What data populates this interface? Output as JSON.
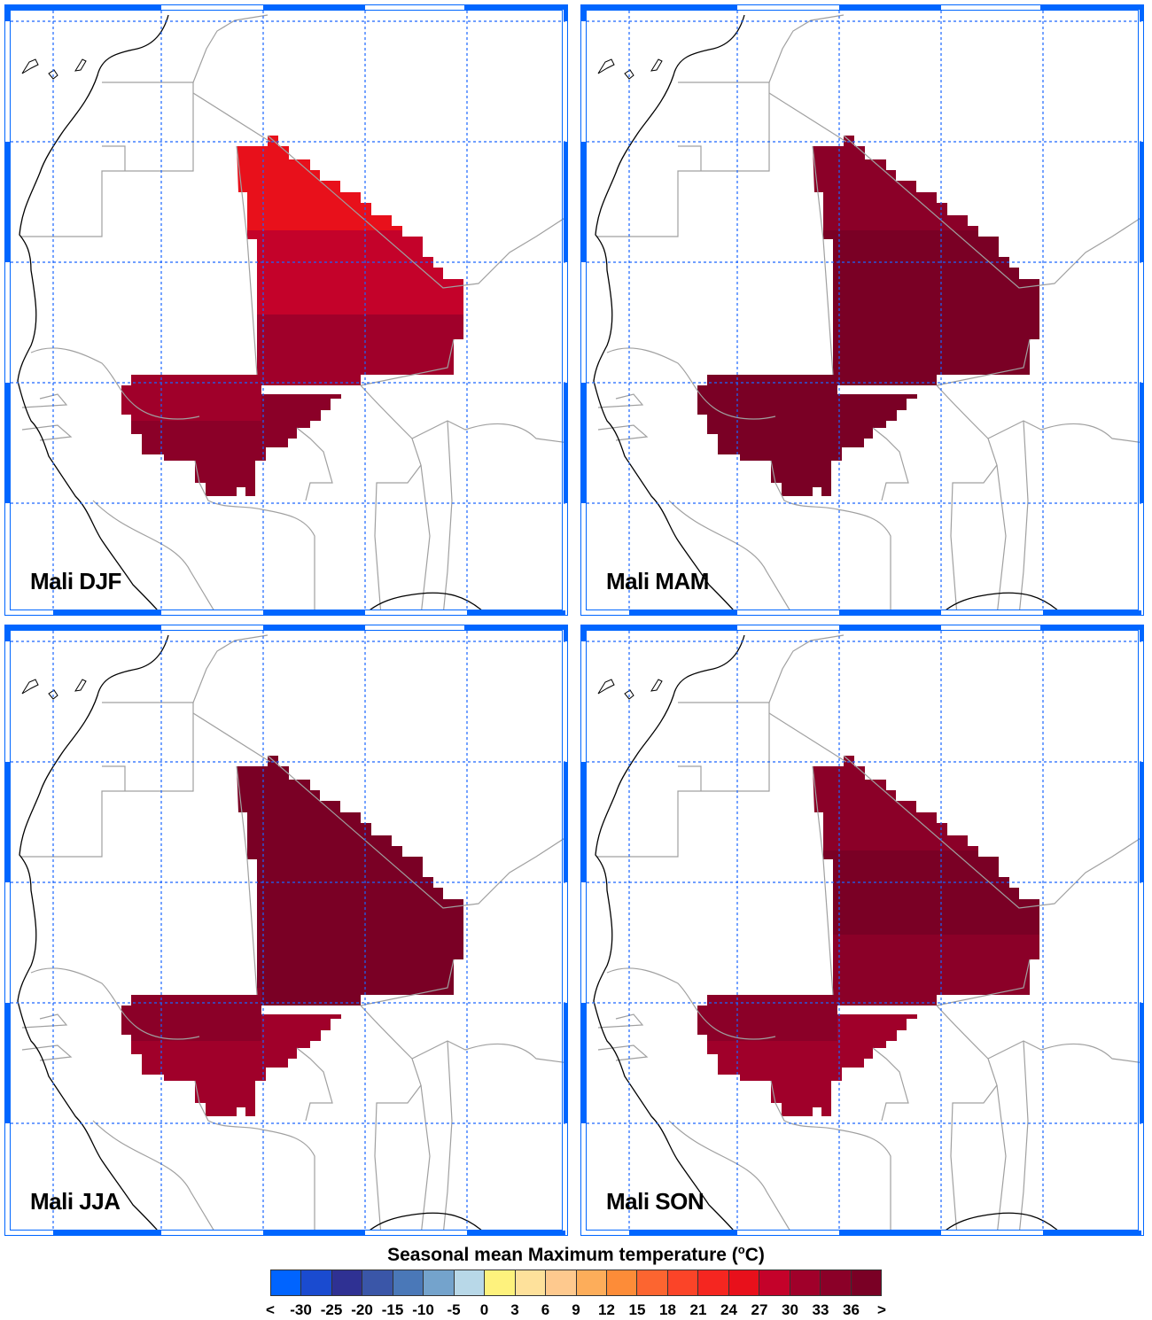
{
  "panels": [
    {
      "label": "Mali DJF",
      "zones": {
        "north": "24",
        "central": "27",
        "east": "30",
        "south": "33",
        "southwest": "30"
      }
    },
    {
      "label": "Mali MAM",
      "zones": {
        "north": "33",
        "central": ">",
        "east": ">",
        "south": ">",
        "southwest": ">"
      }
    },
    {
      "label": "Mali JJA",
      "zones": {
        "north": ">",
        "central": ">",
        "east": ">",
        "south": "30",
        "southwest": "33"
      }
    },
    {
      "label": "Mali SON",
      "zones": {
        "north": "33",
        "central": ">",
        "east": "33",
        "south": "30",
        "southwest": "33"
      }
    }
  ],
  "colorbar": {
    "title": "Seasonal mean Maximum temperature (",
    "title_unit_sup": "o",
    "title_unit": "C)",
    "labels": [
      "<",
      "-30",
      "-25",
      "-20",
      "-15",
      "-10",
      "-5",
      "0",
      "3",
      "6",
      "9",
      "12",
      "15",
      "18",
      "21",
      "24",
      "27",
      "30",
      "33",
      "36",
      ">"
    ],
    "colors": [
      "#0064ff",
      "#1a4bd0",
      "#2f3193",
      "#3a56a8",
      "#4a78b8",
      "#74a3cc",
      "#b8d8e8",
      "#fef27d",
      "#fee19b",
      "#fec98e",
      "#fdad5a",
      "#fd8c38",
      "#fc6530",
      "#fb4428",
      "#f52620",
      "#e8101b",
      "#c4022a",
      "#a0002a",
      "#8b0028",
      "#7a0025"
    ],
    "levels": [
      "<-30",
      "-30",
      "-25",
      "-20",
      "-15",
      "-10",
      "-5",
      "0",
      "3",
      "6",
      "9",
      "12",
      "15",
      "18",
      "21",
      "24",
      "27",
      "30",
      "33",
      ">"
    ]
  },
  "colors": {
    "grid": "#1a66ff",
    "frame": "#0066ff",
    "coast": "#000000",
    "border": "#a0a0a0"
  }
}
